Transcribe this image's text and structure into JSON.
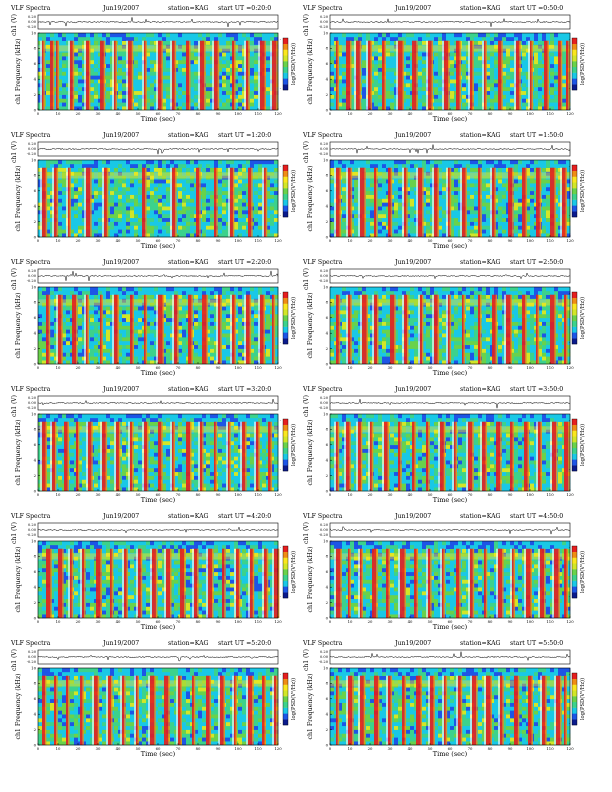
{
  "page_title": "VLF Spectra",
  "colors": {
    "spectrogram_scale": [
      "#0a1a8c",
      "#1d55e6",
      "#19c8e6",
      "#3cd28c",
      "#69d24b",
      "#d2e628",
      "#fae61e",
      "#f08c14",
      "#e61e1e",
      "#ffffff"
    ],
    "background": "#ffffff",
    "trace": "#000000"
  },
  "chart_data": [
    {
      "type": "heatmap",
      "title": "VLF Spectra",
      "date": "Jun19/2007",
      "station": "station=KAG",
      "start": "start UT =0:20:0",
      "xlabel": "Time (sec)",
      "ylabel": "ch1 Frequency (kHz)",
      "trace_label": "ch1 (V)",
      "colorbar_label": "log(PSD(V²/Hz))",
      "xlim": [
        0,
        120
      ],
      "ylim": [
        0,
        10
      ],
      "xticks": [
        "0",
        "10",
        "20",
        "30",
        "40",
        "50",
        "60",
        "70",
        "80",
        "90",
        "100",
        "110",
        "120"
      ],
      "yticks": [
        "0",
        "2",
        "4",
        "6",
        "8",
        "10"
      ],
      "trace_ticks": [
        "0.20",
        "0.00",
        "-0.20"
      ],
      "colorbar_ticks": [
        "-",
        "-"
      ],
      "burst_times": [
        2,
        6,
        9,
        16,
        24,
        31,
        38,
        45,
        53,
        60,
        67,
        74,
        81,
        88,
        97,
        104,
        111,
        117
      ]
    },
    {
      "type": "heatmap",
      "title": "VLF Spectra",
      "date": "Jun19/2007",
      "station": "station=KAG",
      "start": "start UT =0:50:0",
      "xlabel": "Time (sec)",
      "ylabel": "ch1 Frequency (kHz)",
      "trace_label": "ch1 (V)",
      "colorbar_label": "log(PSD(V²/Hz))",
      "xlim": [
        0,
        120
      ],
      "ylim": [
        0,
        10
      ],
      "xticks": [
        "0",
        "10",
        "20",
        "30",
        "40",
        "50",
        "60",
        "70",
        "80",
        "90",
        "100",
        "110",
        "120"
      ],
      "yticks": [
        "0",
        "2",
        "4",
        "6",
        "8",
        "10"
      ],
      "trace_ticks": [
        "0.20",
        "0.00",
        "-0.20"
      ],
      "colorbar_ticks": [
        "-",
        "-"
      ],
      "burst_times": [
        3,
        8,
        13,
        19,
        26,
        34,
        41,
        49,
        57,
        63,
        70,
        77,
        84,
        93,
        100,
        107,
        114,
        118
      ]
    },
    {
      "type": "heatmap",
      "title": "VLF Spectra",
      "date": "Jun19/2007",
      "station": "station=KAG",
      "start": "start UT =1:20:0",
      "xlabel": "Time (sec)",
      "ylabel": "ch1 Frequency (kHz)",
      "trace_label": "ch1 (V)",
      "colorbar_label": "log(PSD(V²/Hz))",
      "xlim": [
        0,
        120
      ],
      "ylim": [
        0,
        10
      ],
      "xticks": [
        "0",
        "10",
        "20",
        "30",
        "40",
        "50",
        "60",
        "70",
        "80",
        "90",
        "100",
        "110",
        "120"
      ],
      "yticks": [
        "0",
        "2",
        "4",
        "6",
        "8",
        "10"
      ],
      "trace_ticks": [
        "0.20",
        "0.00",
        "-0.20"
      ],
      "colorbar_ticks": [
        "-",
        "-"
      ],
      "burst_times": [
        2,
        8,
        15,
        24,
        33,
        52,
        67,
        79,
        88,
        96,
        105,
        113
      ]
    },
    {
      "type": "heatmap",
      "title": "VLF Spectra",
      "date": "Jun19/2007",
      "station": "station=KAG",
      "start": "start UT =1:50:0",
      "xlabel": "Time (sec)",
      "ylabel": "ch1 Frequency (kHz)",
      "trace_label": "ch1 (V)",
      "colorbar_label": "log(PSD(V²/Hz))",
      "xlim": [
        0,
        120
      ],
      "ylim": [
        0,
        10
      ],
      "xticks": [
        "0",
        "10",
        "20",
        "30",
        "40",
        "50",
        "60",
        "70",
        "80",
        "90",
        "100",
        "110",
        "120"
      ],
      "yticks": [
        "0",
        "2",
        "4",
        "6",
        "8",
        "10"
      ],
      "trace_ticks": [
        "0.20",
        "0.00",
        "-0.20"
      ],
      "colorbar_ticks": [
        "-",
        "-"
      ],
      "burst_times": [
        3,
        9,
        15,
        22,
        29,
        37,
        44,
        52,
        59,
        66,
        74,
        81,
        89,
        96,
        103,
        110,
        116
      ]
    },
    {
      "type": "heatmap",
      "title": "VLF Spectra",
      "date": "Jun19/2007",
      "station": "station=KAG",
      "start": "start UT =2:20:0",
      "xlabel": "Time (sec)",
      "ylabel": "ch1 Frequency (kHz)",
      "trace_label": "ch1 (V)",
      "colorbar_label": "log(PSD(V²/Hz))",
      "xlim": [
        0,
        120
      ],
      "ylim": [
        0,
        10
      ],
      "xticks": [
        "0",
        "10",
        "20",
        "30",
        "40",
        "50",
        "60",
        "70",
        "80",
        "90",
        "100",
        "110",
        "120"
      ],
      "yticks": [
        "0",
        "2",
        "4",
        "6",
        "8",
        "10"
      ],
      "trace_ticks": [
        "0.20",
        "0.00",
        "-0.20"
      ],
      "colorbar_ticks": [
        "-",
        "-"
      ],
      "burst_times": [
        4,
        10,
        17,
        24,
        31,
        38,
        46,
        53,
        60,
        68,
        75,
        82,
        90,
        97,
        104,
        111,
        117
      ]
    },
    {
      "type": "heatmap",
      "title": "VLF Spectra",
      "date": "Jun19/2007",
      "station": "station=KAG",
      "start": "start UT =2:50:0",
      "xlabel": "Time (sec)",
      "ylabel": "ch1 Frequency (kHz)",
      "trace_label": "ch1 (V)",
      "colorbar_label": "log(PSD(V²/Hz))",
      "xlim": [
        0,
        120
      ],
      "ylim": [
        0,
        10
      ],
      "xticks": [
        "0",
        "10",
        "20",
        "30",
        "40",
        "50",
        "60",
        "70",
        "80",
        "90",
        "100",
        "110",
        "120"
      ],
      "yticks": [
        "0",
        "2",
        "4",
        "6",
        "8",
        "10"
      ],
      "trace_ticks": [
        "0.20",
        "0.00",
        "-0.20"
      ],
      "colorbar_ticks": [
        "-",
        "-"
      ],
      "burst_times": [
        3,
        9,
        16,
        22,
        30,
        37,
        45,
        52,
        59,
        66,
        74,
        81,
        88,
        96,
        103,
        110,
        117
      ]
    },
    {
      "type": "heatmap",
      "title": "VLF Spectra",
      "date": "Jun19/2007",
      "station": "station=KAG",
      "start": "start UT =3:20:0",
      "xlabel": "Time (sec)",
      "ylabel": "ch1 Frequency (kHz)",
      "trace_label": "ch1 (V)",
      "colorbar_label": "log(PSD(V²/Hz))",
      "xlim": [
        0,
        120
      ],
      "ylim": [
        0,
        10
      ],
      "xticks": [
        "0",
        "10",
        "20",
        "30",
        "40",
        "50",
        "60",
        "70",
        "80",
        "90",
        "100",
        "110",
        "120"
      ],
      "yticks": [
        "0",
        "2",
        "4",
        "6",
        "8",
        "10"
      ],
      "trace_ticks": [
        "0.20",
        "0.00",
        "-0.20"
      ],
      "colorbar_ticks": [
        "-",
        "-"
      ],
      "burst_times": [
        2,
        7,
        13,
        19,
        25,
        32,
        39,
        46,
        53,
        60,
        67,
        74,
        81,
        88,
        95,
        102,
        109,
        115
      ]
    },
    {
      "type": "heatmap",
      "title": "VLF Spectra",
      "date": "Jun19/2007",
      "station": "station=KAG",
      "start": "start UT =3:50:0",
      "xlabel": "Time (sec)",
      "ylabel": "ch1 Frequency (kHz)",
      "trace_label": "ch1 (V)",
      "colorbar_label": "log(PSD(V²/Hz))",
      "xlim": [
        0,
        120
      ],
      "ylim": [
        0,
        10
      ],
      "xticks": [
        "0",
        "10",
        "20",
        "30",
        "40",
        "50",
        "60",
        "70",
        "80",
        "90",
        "100",
        "110",
        "120"
      ],
      "yticks": [
        "0",
        "2",
        "4",
        "6",
        "8",
        "10"
      ],
      "trace_ticks": [
        "0.20",
        "0.00",
        "-0.20"
      ],
      "colorbar_ticks": [
        "-",
        "-"
      ],
      "burst_times": [
        3,
        8,
        14,
        20,
        27,
        34,
        41,
        48,
        55,
        62,
        69,
        76,
        83,
        90,
        97,
        104,
        111,
        117
      ]
    },
    {
      "type": "heatmap",
      "title": "VLF Spectra",
      "date": "Jun19/2007",
      "station": "station=KAG",
      "start": "start UT =4:20:0",
      "xlabel": "Time (sec)",
      "ylabel": "ch1 Frequency (kHz)",
      "trace_label": "ch1 (V)",
      "colorbar_label": "log(PSD(V²/Hz))",
      "xlim": [
        0,
        120
      ],
      "ylim": [
        0,
        10
      ],
      "xticks": [
        "0",
        "10",
        "20",
        "30",
        "40",
        "50",
        "60",
        "70",
        "80",
        "90",
        "100",
        "110",
        "120"
      ],
      "yticks": [
        "0",
        "2",
        "4",
        "6",
        "8",
        "10"
      ],
      "trace_ticks": [
        "0.20",
        "0.00",
        "-0.20"
      ],
      "colorbar_ticks": [
        "-",
        "-"
      ],
      "burst_times": [
        4,
        10,
        16,
        22,
        29,
        36,
        43,
        50,
        57,
        64,
        71,
        78,
        85,
        92,
        99,
        106,
        113,
        118
      ]
    },
    {
      "type": "heatmap",
      "title": "VLF Spectra",
      "date": "Jun19/2007",
      "station": "station=KAG",
      "start": "start UT =4:50:0",
      "xlabel": "Time (sec)",
      "ylabel": "ch1 Frequency (kHz)",
      "trace_label": "ch1 (V)",
      "colorbar_label": "log(PSD(V²/Hz))",
      "xlim": [
        0,
        120
      ],
      "ylim": [
        0,
        10
      ],
      "xticks": [
        "0",
        "10",
        "20",
        "30",
        "40",
        "50",
        "60",
        "70",
        "80",
        "90",
        "100",
        "110",
        "120"
      ],
      "yticks": [
        "0",
        "2",
        "4",
        "6",
        "8",
        "10"
      ],
      "trace_ticks": [
        "0.20",
        "0.00",
        "-0.20"
      ],
      "colorbar_ticks": [
        "-",
        "-"
      ],
      "burst_times": [
        3,
        9,
        15,
        21,
        28,
        35,
        42,
        49,
        56,
        63,
        70,
        77,
        84,
        91,
        98,
        105,
        112,
        117
      ]
    },
    {
      "type": "heatmap",
      "title": "VLF Spectra",
      "date": "Jun19/2007",
      "station": "station=KAG",
      "start": "start UT =5:20:0",
      "xlabel": "Time (sec)",
      "ylabel": "ch1 Frequency (kHz)",
      "trace_label": "ch1 (V)",
      "colorbar_label": "log(PSD(V²/Hz))",
      "xlim": [
        0,
        120
      ],
      "ylim": [
        0,
        10
      ],
      "xticks": [
        "0",
        "10",
        "20",
        "30",
        "40",
        "50",
        "60",
        "70",
        "80",
        "90",
        "100",
        "110",
        "120"
      ],
      "yticks": [
        "0",
        "2",
        "4",
        "6",
        "8",
        "10"
      ],
      "trace_ticks": [
        "0.20",
        "0.00",
        "-0.20"
      ],
      "colorbar_ticks": [
        "-",
        "-"
      ],
      "burst_times": [
        2,
        8,
        14,
        21,
        28,
        35,
        42,
        49,
        56,
        63,
        70,
        77,
        84,
        91,
        98,
        105,
        112,
        118
      ]
    },
    {
      "type": "heatmap",
      "title": "VLF Spectra",
      "date": "Jun19/2007",
      "station": "station=KAG",
      "start": "start UT =5:50:0",
      "xlabel": "Time (sec)",
      "ylabel": "ch1 Frequency (kHz)",
      "trace_label": "ch1 (V)",
      "colorbar_label": "log(PSD(V²/Hz))",
      "xlim": [
        0,
        120
      ],
      "ylim": [
        0,
        10
      ],
      "xticks": [
        "0",
        "10",
        "20",
        "30",
        "40",
        "50",
        "60",
        "70",
        "80",
        "90",
        "100",
        "110",
        "120"
      ],
      "yticks": [
        "0",
        "2",
        "4",
        "6",
        "8",
        "10"
      ],
      "trace_ticks": [
        "0.20",
        "0.00",
        "-0.20"
      ],
      "colorbar_ticks": [
        "-",
        "-"
      ],
      "burst_times": [
        3,
        9,
        15,
        22,
        29,
        36,
        43,
        50,
        57,
        64,
        71,
        78,
        85,
        92,
        99,
        106,
        113,
        117
      ]
    }
  ]
}
